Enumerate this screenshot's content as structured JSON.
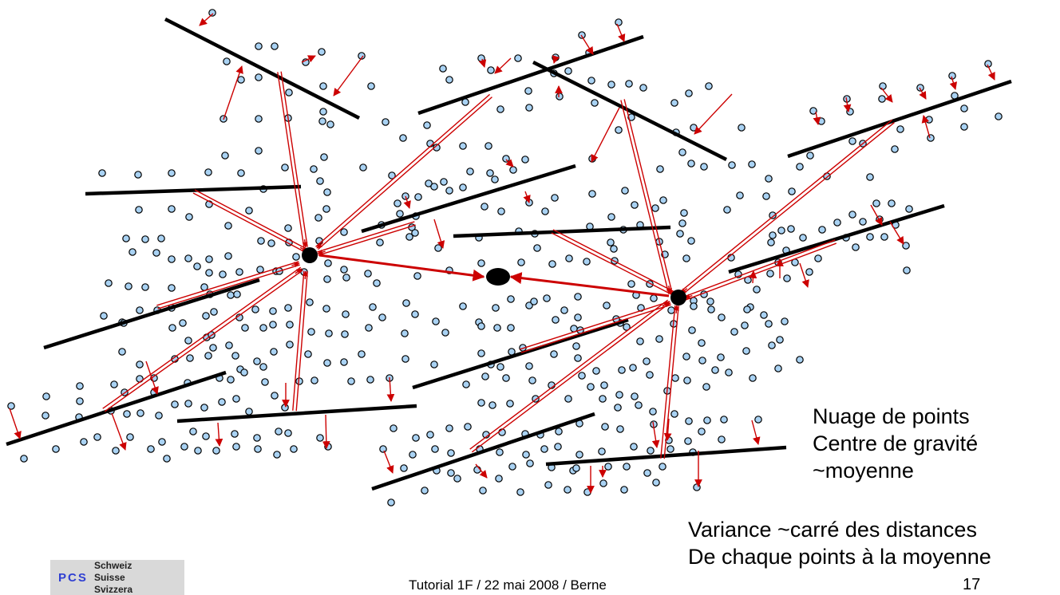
{
  "legend": {
    "line1": "Nuage de points",
    "line2": "Centre de gravité",
    "line3": "~moyenne"
  },
  "variance": {
    "line1": "Variance ~carré des distances",
    "line2": "De chaque points à la moyenne"
  },
  "footer": {
    "text": "Tutorial 1F / 22 mai 2008 / Berne",
    "page": "17"
  },
  "logo": {
    "abbr": "PCS",
    "line1": "Schweiz",
    "line2": "Suisse",
    "line3": "Svizzera"
  },
  "colors": {
    "point_fill": "#a9d2f3",
    "point_stroke": "#000000",
    "arrow": "#cc0000",
    "line": "#000000"
  }
}
